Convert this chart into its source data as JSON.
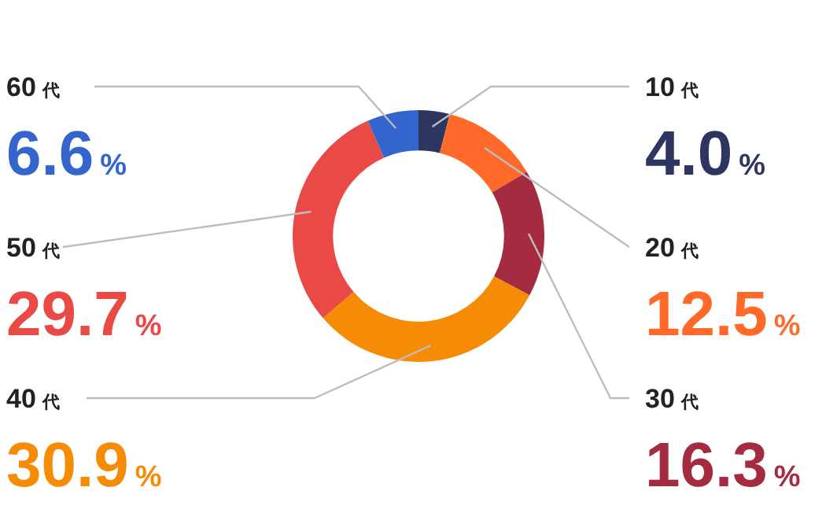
{
  "chart_data": {
    "type": "donut",
    "categories": [
      "10代",
      "20代",
      "30代",
      "40代",
      "50代",
      "60代"
    ],
    "values": [
      4.0,
      12.5,
      16.3,
      30.9,
      29.7,
      6.6
    ],
    "colors": [
      "#2e3561",
      "#ff6a2b",
      "#a52c40",
      "#f68b05",
      "#e94a45",
      "#3465cc"
    ],
    "value_labels": [
      "4.0%",
      "12.5%",
      "16.3%",
      "30.9%",
      "29.7%",
      "6.6%"
    ],
    "legend": false
  }
}
